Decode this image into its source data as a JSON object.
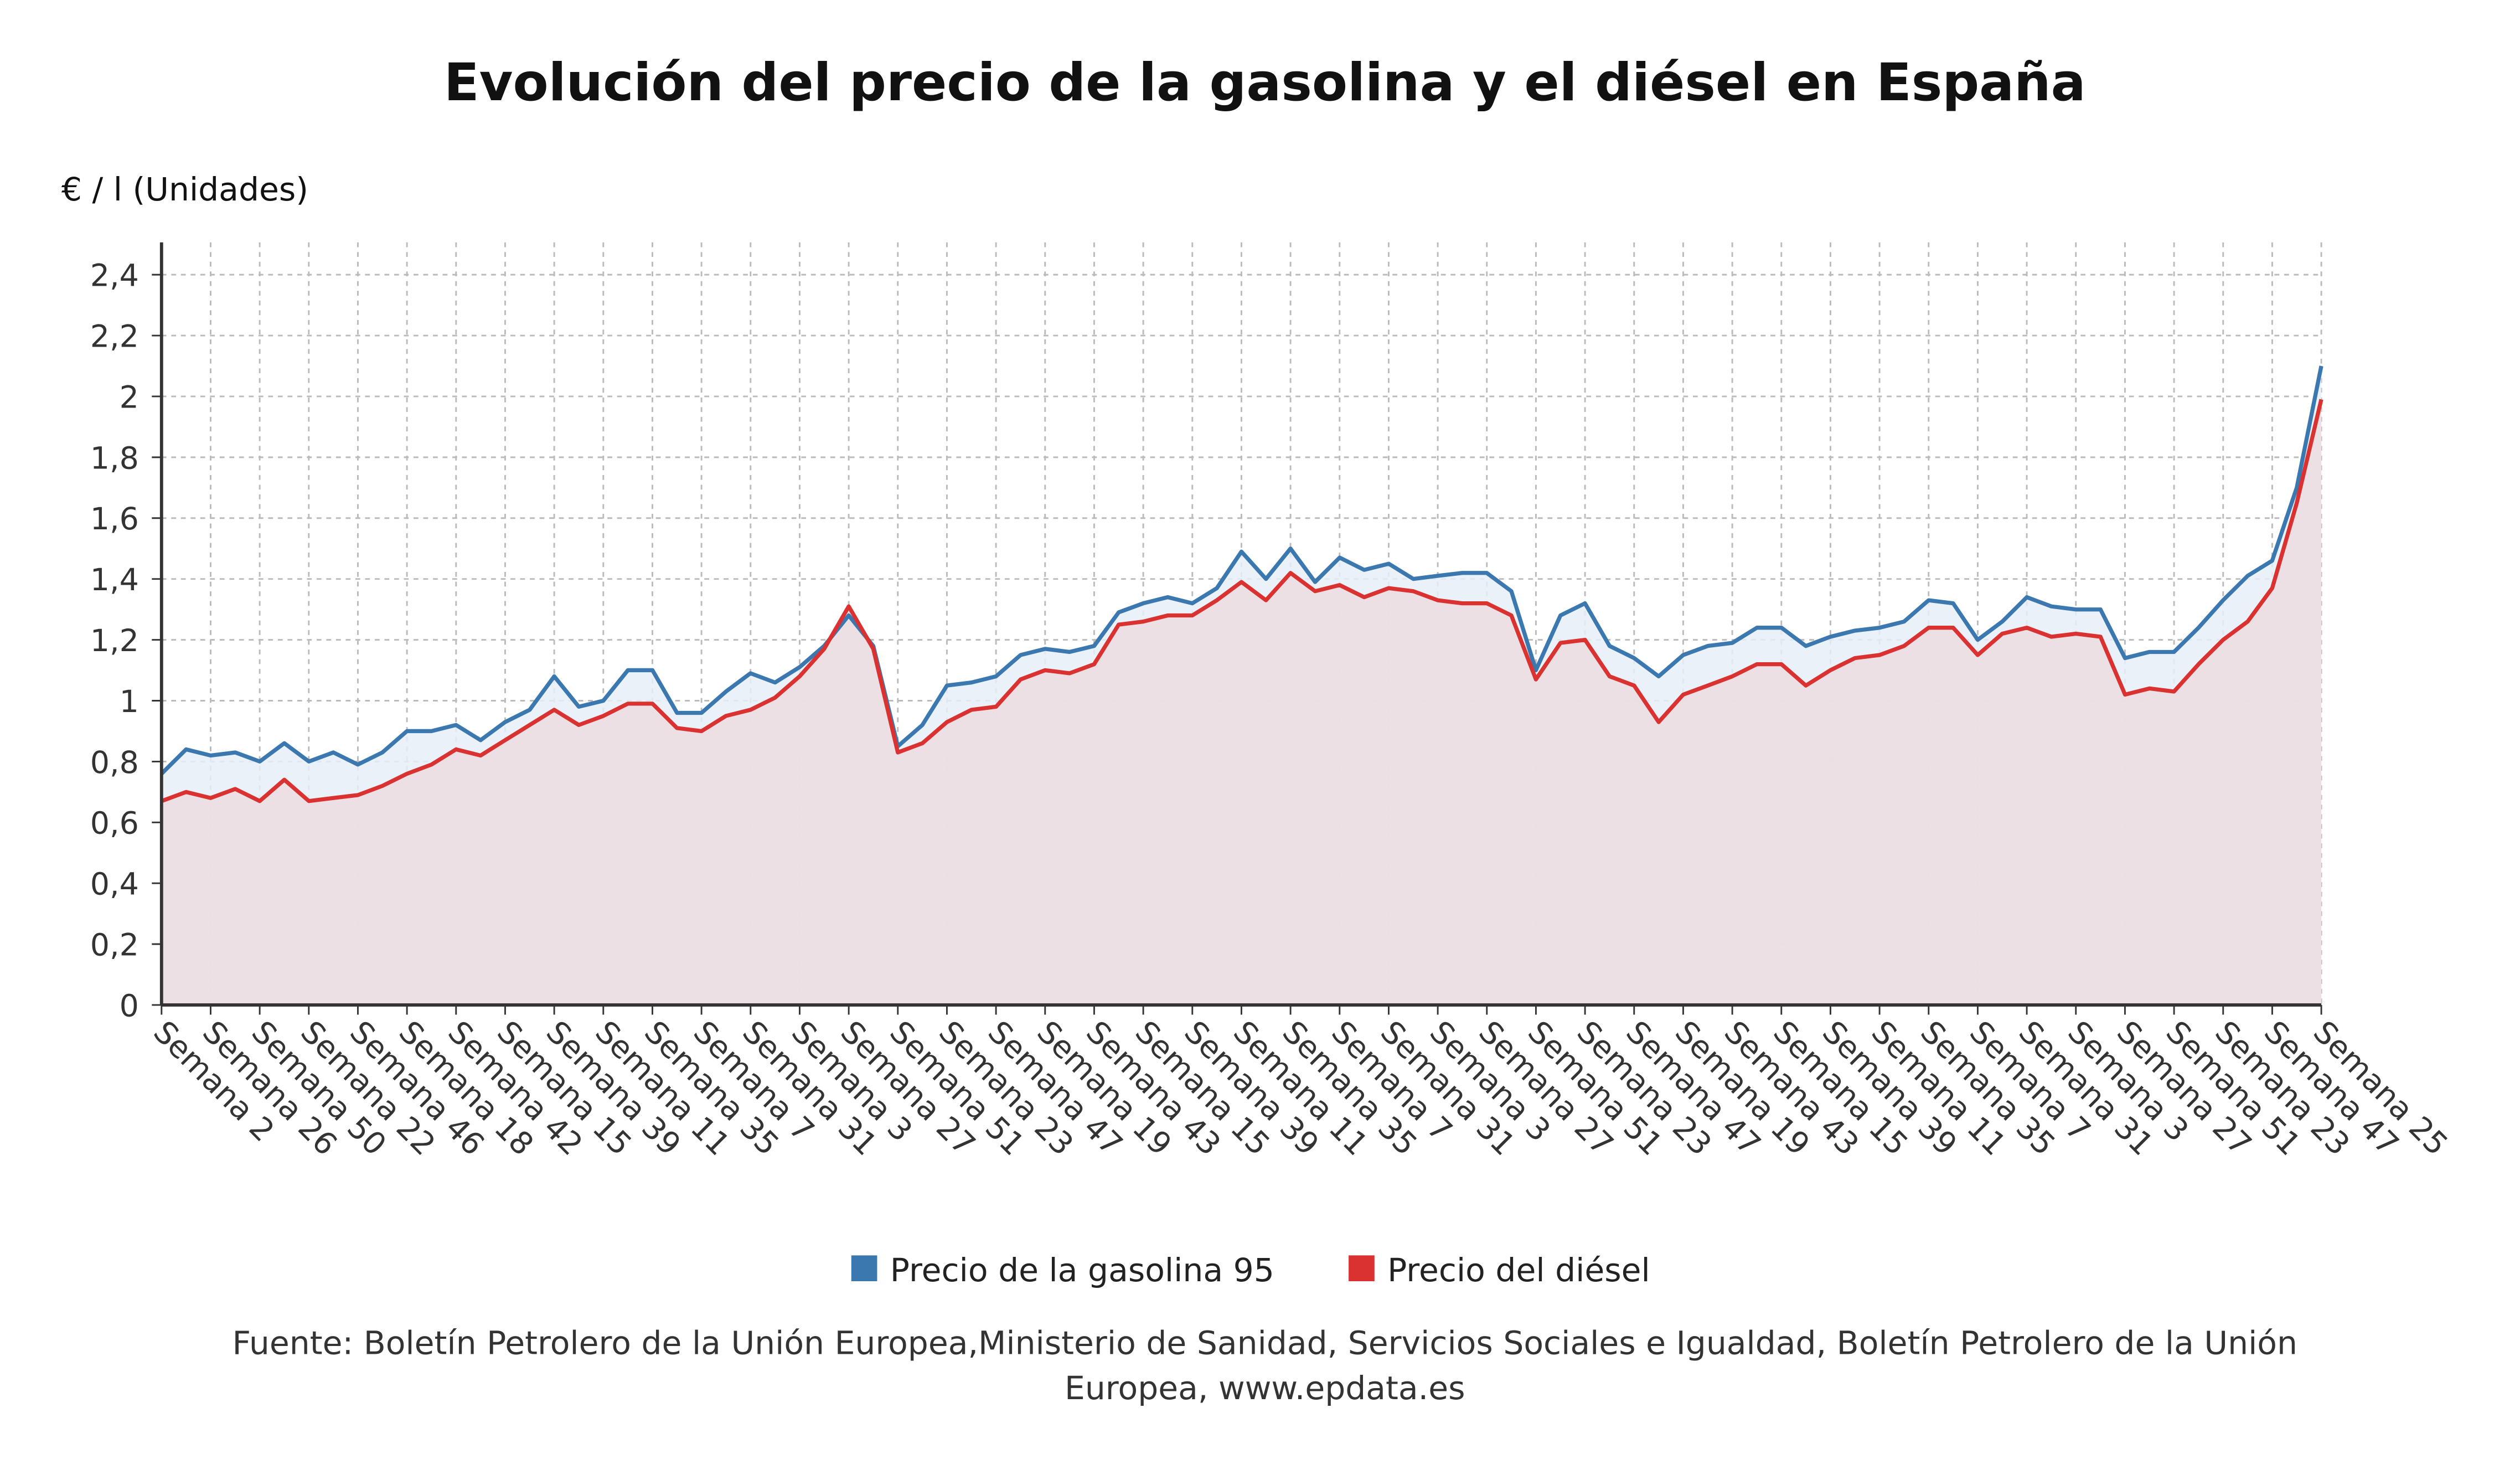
{
  "chart_data": {
    "type": "line",
    "title": "Evolución del precio de la gasolina y el diésel en España",
    "y_label": "€ / l (Unidades)",
    "source": "Fuente: Boletín Petrolero de la Unión Europea,Ministerio de Sanidad, Servicios Sociales e Igualdad, Boletín Petrolero de la Unión Europea, www.epdata.es",
    "categories": [
      "Semana 2",
      null,
      "Semana 26",
      null,
      "Semana 50",
      null,
      "Semana 22",
      null,
      "Semana 46",
      null,
      "Semana 18",
      null,
      "Semana 42",
      null,
      "Semana 15",
      null,
      "Semana 39",
      null,
      "Semana 11",
      null,
      "Semana 35",
      null,
      "Semana 7",
      null,
      "Semana 31",
      null,
      "Semana 3",
      null,
      "Semana 27",
      null,
      "Semana 51",
      null,
      "Semana 23",
      null,
      "Semana 47",
      null,
      "Semana 19",
      null,
      "Semana 43",
      null,
      "Semana 15",
      null,
      "Semana 39",
      null,
      "Semana 11",
      null,
      "Semana 35",
      null,
      "Semana 7",
      null,
      "Semana 31",
      null,
      "Semana 3",
      null,
      "Semana 27",
      null,
      "Semana 51",
      null,
      "Semana 23",
      null,
      "Semana 47",
      null,
      "Semana 19",
      null,
      "Semana 43",
      null,
      "Semana 15",
      null,
      "Semana 39",
      null,
      "Semana 11",
      null,
      "Semana 35",
      null,
      "Semana 7",
      null,
      "Semana 31",
      null,
      "Semana 3",
      null,
      "Semana 27",
      null,
      "Semana 51",
      null,
      "Semana 23",
      null,
      "Semana 47",
      null,
      "Semana 25"
    ],
    "series": [
      {
        "name": "Precio de la gasolina 95",
        "color": "#3b78b0",
        "fill": "#e6eff7",
        "values": [
          0.76,
          0.84,
          0.82,
          0.83,
          0.8,
          0.86,
          0.8,
          0.83,
          0.79,
          0.83,
          0.9,
          0.9,
          0.92,
          0.87,
          0.93,
          0.97,
          1.08,
          0.98,
          1.0,
          1.1,
          1.1,
          0.96,
          0.96,
          1.03,
          1.09,
          1.06,
          1.11,
          1.18,
          1.28,
          1.18,
          0.85,
          0.92,
          1.05,
          1.06,
          1.08,
          1.15,
          1.17,
          1.16,
          1.18,
          1.29,
          1.32,
          1.34,
          1.32,
          1.37,
          1.49,
          1.4,
          1.5,
          1.39,
          1.47,
          1.43,
          1.45,
          1.4,
          1.41,
          1.42,
          1.42,
          1.36,
          1.1,
          1.28,
          1.32,
          1.18,
          1.14,
          1.08,
          1.15,
          1.18,
          1.19,
          1.24,
          1.24,
          1.18,
          1.21,
          1.23,
          1.24,
          1.26,
          1.33,
          1.32,
          1.2,
          1.26,
          1.34,
          1.31,
          1.3,
          1.3,
          1.14,
          1.16,
          1.16,
          1.24,
          1.33,
          1.41,
          1.46,
          1.7,
          2.1
        ]
      },
      {
        "name": "Precio del diésel",
        "color": "#d93230",
        "fill": "#ecdde2",
        "values": [
          0.67,
          0.7,
          0.68,
          0.71,
          0.67,
          0.74,
          0.67,
          0.68,
          0.69,
          0.72,
          0.76,
          0.79,
          0.84,
          0.82,
          0.87,
          0.92,
          0.97,
          0.92,
          0.95,
          0.99,
          0.99,
          0.91,
          0.9,
          0.95,
          0.97,
          1.01,
          1.08,
          1.17,
          1.31,
          1.17,
          0.83,
          0.86,
          0.93,
          0.97,
          0.98,
          1.07,
          1.1,
          1.09,
          1.12,
          1.25,
          1.26,
          1.28,
          1.28,
          1.33,
          1.39,
          1.33,
          1.42,
          1.36,
          1.38,
          1.34,
          1.37,
          1.36,
          1.33,
          1.32,
          1.32,
          1.28,
          1.07,
          1.19,
          1.2,
          1.08,
          1.05,
          0.93,
          1.02,
          1.05,
          1.08,
          1.12,
          1.12,
          1.05,
          1.1,
          1.14,
          1.15,
          1.18,
          1.24,
          1.24,
          1.15,
          1.22,
          1.24,
          1.21,
          1.22,
          1.21,
          1.02,
          1.04,
          1.03,
          1.12,
          1.2,
          1.26,
          1.37,
          1.65,
          1.99
        ]
      }
    ],
    "ylim": [
      0,
      2.4
    ],
    "yticks": [
      0,
      {
        "value": 0.2,
        "label": "0,2"
      },
      {
        "value": 0.4,
        "label": "0,4"
      },
      {
        "value": 0.6,
        "label": "0,6"
      },
      {
        "value": 0.8,
        "label": "0,8"
      },
      1,
      {
        "value": 1.2,
        "label": "1,2"
      },
      {
        "value": 1.4,
        "label": "1,4"
      },
      {
        "value": 1.6,
        "label": "1,6"
      },
      {
        "value": 1.8,
        "label": "1,8"
      },
      2,
      {
        "value": 2.2,
        "label": "2,2"
      },
      {
        "value": 2.4,
        "label": "2,4"
      }
    ],
    "grid": true,
    "legend": "bottom"
  }
}
